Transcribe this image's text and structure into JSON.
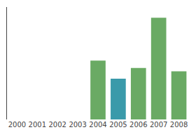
{
  "chart_data": {
    "type": "bar",
    "categories": [
      "2000",
      "2001",
      "2002",
      "2003",
      "2004",
      "2005",
      "2006",
      "2007",
      "2008"
    ],
    "values": [
      0,
      0,
      0,
      0,
      55,
      38,
      48,
      95,
      45
    ],
    "colors": [
      "#6aaa64",
      "#6aaa64",
      "#6aaa64",
      "#6aaa64",
      "#6aaa64",
      "#3a9aaa",
      "#6aaa64",
      "#6aaa64",
      "#6aaa64"
    ],
    "ylim": [
      0,
      105
    ],
    "grid": false,
    "tick_labels": "x"
  }
}
